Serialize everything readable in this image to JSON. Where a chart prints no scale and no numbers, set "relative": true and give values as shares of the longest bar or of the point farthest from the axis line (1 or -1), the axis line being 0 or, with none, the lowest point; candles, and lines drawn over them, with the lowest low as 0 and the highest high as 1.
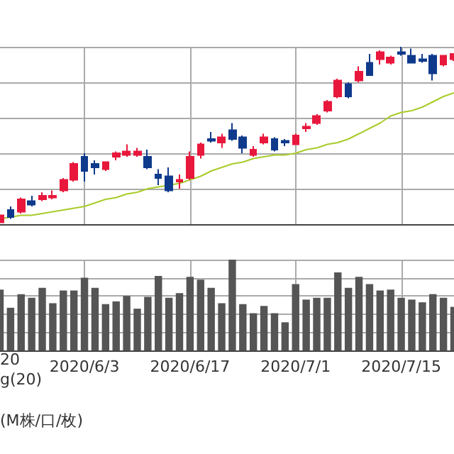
{
  "chart_data": [
    {
      "type": "candlestick",
      "relative": true,
      "grid": true,
      "tick_labels": false,
      "colors": [
        "#e8173c",
        "#0f3a8c",
        "#e8173c",
        "#0f3a8c",
        "#e8173c",
        "#e8173c",
        "#e8173c",
        "#e8173c",
        "#0f3a8c",
        "#0f3a8c",
        "#e8173c",
        "#e8173c",
        "#e8173c",
        "#e8173c",
        "#0f3a8c",
        "#0f3a8c",
        "#0f3a8c",
        "#e8173c",
        "#e8173c",
        "#e8173c",
        "#0f3a8c",
        "#e8173c",
        "#0f3a8c",
        "#0f3a8c",
        "#e8173c",
        "#e8173c",
        "#0f3a8c",
        "#0f3a8c",
        "#e8173c",
        "#e8173c",
        "#e8173c",
        "#e8173c",
        "#e8173c",
        "#0f3a8c",
        "#e8173c",
        "#0f3a8c",
        "#e8173c",
        "#e8173c",
        "#0f3a8c",
        "#0f3a8c",
        "#0f3a8c",
        "#0f3a8c",
        "#e8173c",
        "#e8173c"
      ],
      "categories": [
        null,
        null,
        null,
        null,
        null,
        null,
        null,
        null,
        "2020/6/3",
        null,
        null,
        null,
        null,
        null,
        null,
        null,
        null,
        null,
        "2020/6/17",
        null,
        null,
        null,
        null,
        null,
        null,
        null,
        null,
        null,
        "2020/7/1",
        null,
        null,
        null,
        null,
        null,
        null,
        null,
        null,
        null,
        "2020/7/15",
        null,
        null,
        null,
        null,
        null
      ],
      "ohlc": [
        [
          0.01,
          0.06,
          0,
          0.05
        ],
        [
          0.08,
          0.1,
          0.03,
          0.04
        ],
        [
          0.07,
          0.15,
          0.06,
          0.14
        ],
        [
          0.13,
          0.16,
          0.1,
          0.11
        ],
        [
          0.14,
          0.18,
          0.13,
          0.16
        ],
        [
          0.15,
          0.19,
          0.14,
          0.16
        ],
        [
          0.19,
          0.26,
          0.18,
          0.25
        ],
        [
          0.25,
          0.35,
          0.24,
          0.34
        ],
        [
          0.38,
          0.4,
          0.24,
          0.3
        ],
        [
          0.34,
          0.36,
          0.28,
          0.32
        ],
        [
          0.31,
          0.35,
          0.3,
          0.35
        ],
        [
          0.38,
          0.41,
          0.36,
          0.4
        ],
        [
          0.39,
          0.45,
          0.38,
          0.41
        ],
        [
          0.39,
          0.43,
          0.38,
          0.41
        ],
        [
          0.38,
          0.42,
          0.31,
          0.32
        ],
        [
          0.28,
          0.31,
          0.22,
          0.26
        ],
        [
          0.27,
          0.32,
          0.18,
          0.19
        ],
        [
          0.24,
          0.28,
          0.2,
          0.25
        ],
        [
          0.26,
          0.41,
          0.25,
          0.38
        ],
        [
          0.39,
          0.46,
          0.37,
          0.45
        ],
        [
          0.48,
          0.52,
          0.46,
          0.47
        ],
        [
          0.46,
          0.51,
          0.43,
          0.49
        ],
        [
          0.53,
          0.57,
          0.47,
          0.48
        ],
        [
          0.49,
          0.5,
          0.4,
          0.43
        ],
        [
          0.39,
          0.44,
          0.38,
          0.42
        ],
        [
          0.46,
          0.51,
          0.45,
          0.49
        ],
        [
          0.48,
          0.49,
          0.41,
          0.42
        ],
        [
          0.47,
          0.48,
          0.44,
          0.46
        ],
        [
          0.45,
          0.51,
          0.45,
          0.5
        ],
        [
          0.54,
          0.57,
          0.52,
          0.55
        ],
        [
          0.57,
          0.62,
          0.56,
          0.61
        ],
        [
          0.64,
          0.7,
          0.63,
          0.69
        ],
        [
          0.72,
          0.82,
          0.71,
          0.81
        ],
        [
          0.79,
          0.8,
          0.71,
          0.72
        ],
        [
          0.81,
          0.89,
          0.8,
          0.86
        ],
        [
          0.91,
          0.96,
          0.84,
          0.84
        ],
        [
          0.93,
          0.98,
          0.9,
          0.97
        ],
        [
          0.91,
          0.95,
          0.9,
          0.94
        ],
        [
          0.97,
          1,
          0.95,
          0.96
        ],
        [
          0.95,
          0.99,
          0.91,
          0.91
        ],
        [
          0.93,
          0.96,
          0.91,
          0.92
        ],
        [
          0.95,
          0.96,
          0.81,
          0.85
        ],
        [
          0.9,
          0.95,
          0.89,
          0.95
        ],
        [
          0.93,
          0.96,
          0.92,
          0.96
        ]
      ],
      "series": [
        {
          "type": "line",
          "color": "#a8cc2a",
          "values": [
            0.03,
            0.04,
            0.05,
            0.05,
            0.06,
            0.07,
            0.08,
            0.09,
            0.1,
            0.12,
            0.14,
            0.15,
            0.17,
            0.18,
            0.2,
            0.21,
            0.22,
            0.23,
            0.25,
            0.27,
            0.3,
            0.32,
            0.34,
            0.35,
            0.37,
            0.38,
            0.39,
            0.39,
            0.4,
            0.42,
            0.43,
            0.45,
            0.46,
            0.48,
            0.51,
            0.54,
            0.57,
            0.61,
            0.63,
            0.64,
            0.66,
            0.69,
            0.72,
            0.74
          ]
        }
      ]
    },
    {
      "type": "bar",
      "relative": true,
      "grid": true,
      "tick_labels": "x",
      "color": "#555555",
      "categories": [
        null,
        null,
        null,
        null,
        null,
        null,
        null,
        null,
        "2020/6/3",
        null,
        null,
        null,
        null,
        null,
        null,
        null,
        null,
        null,
        "2020/6/17",
        null,
        null,
        null,
        null,
        null,
        null,
        null,
        null,
        null,
        "2020/7/1",
        null,
        null,
        null,
        null,
        null,
        null,
        null,
        null,
        null,
        "2020/7/15",
        null,
        null,
        null,
        null,
        null
      ],
      "values": [
        0.67,
        0.47,
        0.62,
        0.58,
        0.69,
        0.52,
        0.66,
        0.66,
        0.8,
        0.69,
        0.51,
        0.54,
        0.6,
        0.46,
        0.59,
        0.82,
        0.58,
        0.63,
        0.81,
        0.78,
        0.69,
        0.52,
        1,
        0.51,
        0.41,
        0.49,
        0.41,
        0.31,
        0.73,
        0.56,
        0.58,
        0.58,
        0.86,
        0.69,
        0.81,
        0.73,
        0.66,
        0.67,
        0.58,
        0.56,
        0.53,
        0.62,
        0.58,
        0.48
      ],
      "annotations": [
        "20",
        "g(20)",
        "(M株/口/枚)"
      ]
    }
  ]
}
